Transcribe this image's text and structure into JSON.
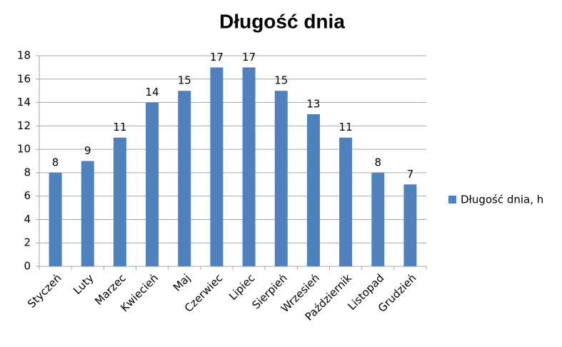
{
  "chart_data": {
    "type": "bar",
    "title": "Długość dnia",
    "categories": [
      "Styczeń",
      "Luty",
      "Marzec",
      "Kwiecień",
      "Maj",
      "Czerwiec",
      "Lipiec",
      "Sierpień",
      "Wrzesień",
      "Październik",
      "Listopad",
      "Grudzień"
    ],
    "series": [
      {
        "name": "Długość dnia, h",
        "color": "#4f81bd",
        "values": [
          8,
          9,
          11,
          14,
          15,
          17,
          17,
          15,
          13,
          11,
          8,
          7
        ]
      }
    ],
    "ylim": [
      0,
      18
    ],
    "yticks": [
      0,
      2,
      4,
      6,
      8,
      10,
      12,
      14,
      16,
      18
    ],
    "grid": true,
    "data_labels": true,
    "legend": "right"
  }
}
